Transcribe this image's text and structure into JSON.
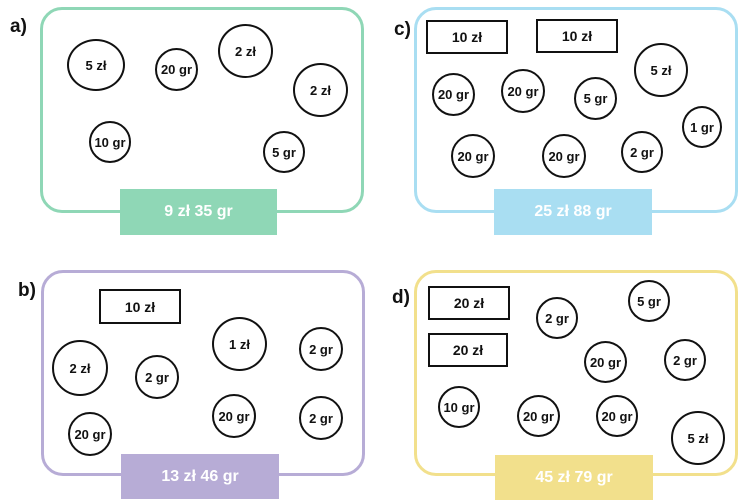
{
  "colors": {
    "a": "#8fd7b6",
    "b": "#b7acd6",
    "c": "#a9def2",
    "d": "#f2e08c"
  },
  "panels": {
    "a": {
      "label": "a)",
      "total": "9 zł 35 gr",
      "coins": [
        "5 zł",
        "20 gr",
        "2 zł",
        "2 zł",
        "10 gr",
        "5 gr"
      ]
    },
    "b": {
      "label": "b)",
      "total": "13 zł 46 gr",
      "notes": [
        "10 zł"
      ],
      "coins": [
        "2 zł",
        "2 gr",
        "1 zł",
        "2 gr",
        "20 gr",
        "20 gr",
        "2 gr"
      ]
    },
    "c": {
      "label": "c)",
      "total": "25 zł 88 gr",
      "notes": [
        "10 zł",
        "10 zł"
      ],
      "coins": [
        "5 zł",
        "20 gr",
        "20 gr",
        "5 gr",
        "1 gr",
        "20 gr",
        "20 gr",
        "2 gr"
      ]
    },
    "d": {
      "label": "d)",
      "total": "45 zł 79 gr",
      "notes": [
        "20 zł",
        "20 zł"
      ],
      "coins": [
        "2 gr",
        "5 gr",
        "20 gr",
        "2 gr",
        "10 gr",
        "20 gr",
        "20 gr",
        "5 zł"
      ]
    }
  }
}
